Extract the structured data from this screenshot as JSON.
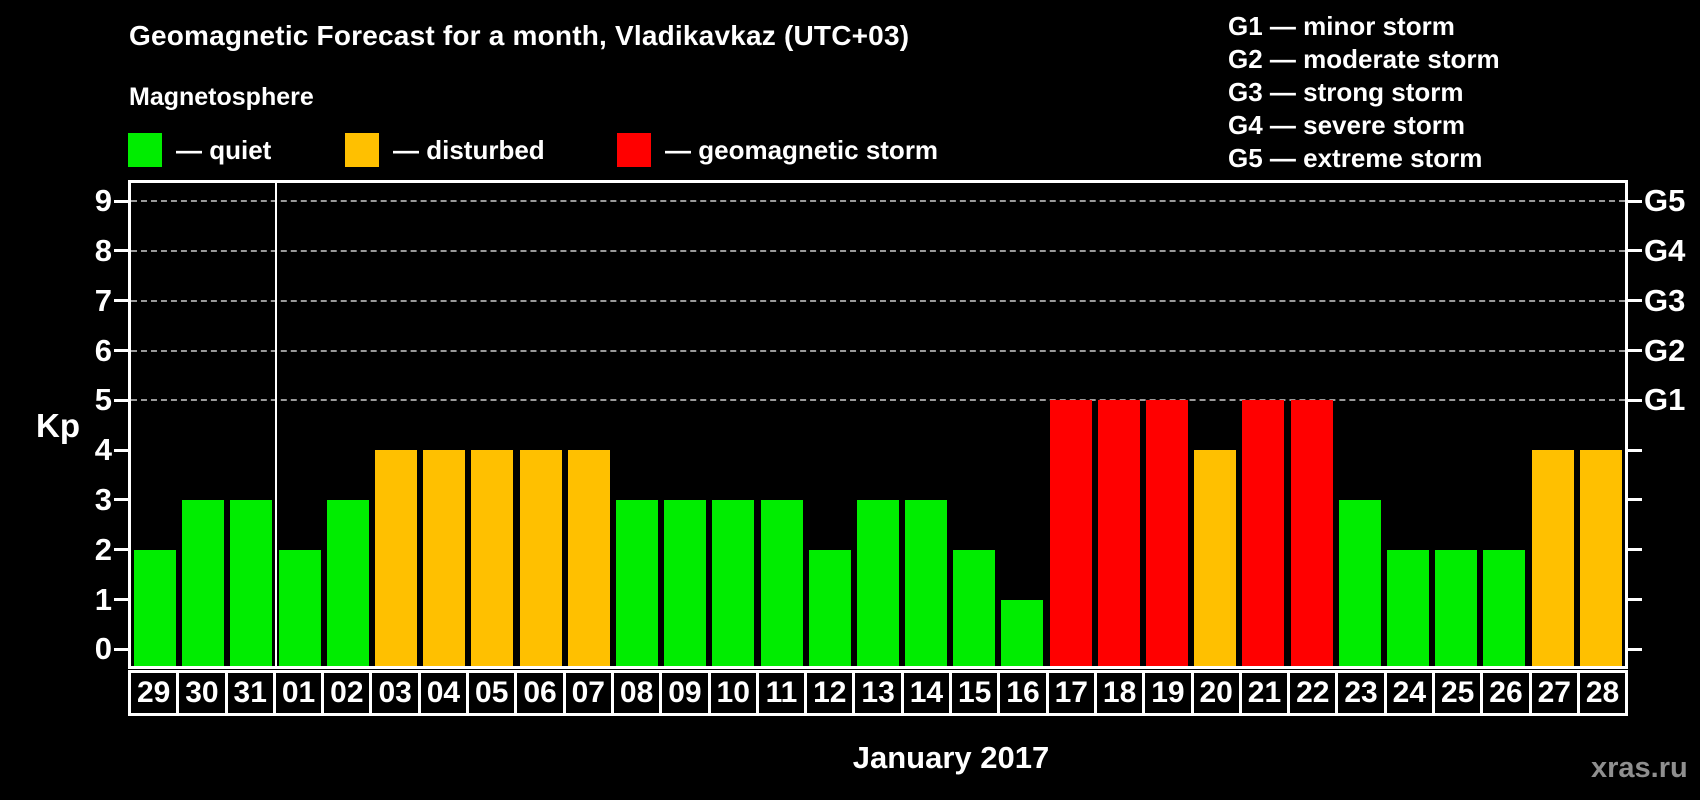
{
  "title": "Geomagnetic Forecast for a month, Vladikavkaz (UTC+03)",
  "subtitle": "Magnetosphere",
  "legend": {
    "items": [
      {
        "status": "quiet",
        "label": "— quiet",
        "color": "#00ed00"
      },
      {
        "status": "disturbed",
        "label": "— disturbed",
        "color": "#ffc000"
      },
      {
        "status": "storm",
        "label": "— geomagnetic storm",
        "color": "#ff0000"
      }
    ]
  },
  "g_scale_legend": {
    "items": [
      "G1 — minor storm",
      "G2 — moderate storm",
      "G3 — strong storm",
      "G4 — severe storm",
      "G5 — extreme storm"
    ]
  },
  "watermark": "xras.ru",
  "chart_data": {
    "type": "bar",
    "title": "Geomagnetic Forecast for a month, Vladikavkaz (UTC+03)",
    "ylabel": "Kp",
    "xlabel": "January 2017",
    "ylim": [
      0,
      9
    ],
    "yticks": [
      0,
      1,
      2,
      3,
      4,
      5,
      6,
      7,
      8,
      9
    ],
    "gridlines_at_kp": [
      5,
      6,
      7,
      8,
      9
    ],
    "grid": "dashed horizontal lines at storm levels G1–G5 only",
    "right_axis": {
      "labels": [
        "G1",
        "G2",
        "G3",
        "G4",
        "G5"
      ],
      "at_kp": [
        5,
        6,
        7,
        8,
        9
      ]
    },
    "month_separator_before_day": "01",
    "categories": [
      "29",
      "30",
      "31",
      "01",
      "02",
      "03",
      "04",
      "05",
      "06",
      "07",
      "08",
      "09",
      "10",
      "11",
      "12",
      "13",
      "14",
      "15",
      "16",
      "17",
      "18",
      "19",
      "20",
      "21",
      "22",
      "23",
      "24",
      "25",
      "26",
      "27",
      "28"
    ],
    "values": [
      2,
      3,
      3,
      2,
      3,
      4,
      4,
      4,
      4,
      4,
      3,
      3,
      3,
      3,
      2,
      3,
      3,
      2,
      1,
      5,
      5,
      5,
      4,
      5,
      5,
      3,
      2,
      2,
      2,
      4,
      4
    ],
    "status": [
      "quiet",
      "quiet",
      "quiet",
      "quiet",
      "quiet",
      "disturbed",
      "disturbed",
      "disturbed",
      "disturbed",
      "disturbed",
      "quiet",
      "quiet",
      "quiet",
      "quiet",
      "quiet",
      "quiet",
      "quiet",
      "quiet",
      "quiet",
      "storm",
      "storm",
      "storm",
      "disturbed",
      "storm",
      "storm",
      "quiet",
      "quiet",
      "quiet",
      "quiet",
      "disturbed",
      "disturbed"
    ],
    "status_colors": {
      "quiet": "#00ed00",
      "disturbed": "#ffc000",
      "storm": "#ff0000"
    },
    "legend_position": "top-left (magnetosphere states) and top-right (G storm scale)"
  }
}
